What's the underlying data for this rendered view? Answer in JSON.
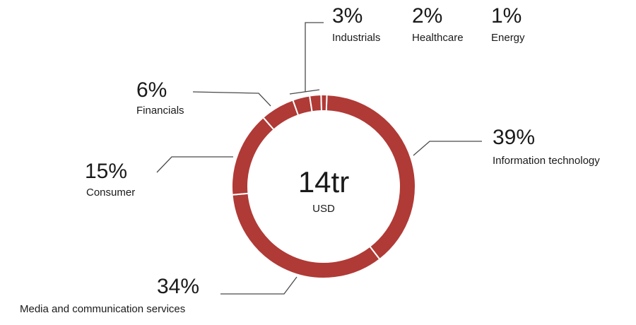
{
  "chart_data": {
    "type": "pie",
    "style": "donut",
    "center": {
      "value": "14tr",
      "unit": "USD"
    },
    "slices": [
      {
        "label": "Information technology",
        "pct_label": "39%",
        "value": 39
      },
      {
        "label": "Media and communication services",
        "pct_label": "34%",
        "value": 34
      },
      {
        "label": "Consumer",
        "pct_label": "15%",
        "value": 15
      },
      {
        "label": "Financials",
        "pct_label": "6%",
        "value": 6
      },
      {
        "label": "Industrials",
        "pct_label": "3%",
        "value": 3
      },
      {
        "label": "Healthcare",
        "pct_label": "2%",
        "value": 2
      },
      {
        "label": "Energy",
        "pct_label": "1%",
        "value": 1
      }
    ],
    "colors": {
      "slice": "#b03a36",
      "separator": "#ffffff",
      "leader": "#4a4a4a"
    }
  }
}
